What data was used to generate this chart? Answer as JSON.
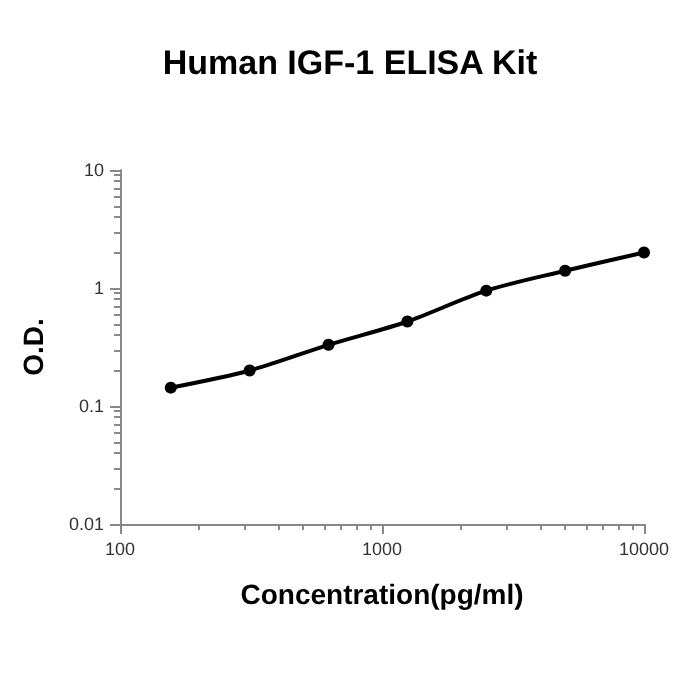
{
  "chart_data": {
    "type": "line",
    "title": "Human IGF-1 ELISA Kit",
    "xlabel": "Concentration(pg/ml)",
    "ylabel": "O.D.",
    "x": [
      156.25,
      312.5,
      625,
      1250,
      2500,
      5000,
      10000
    ],
    "series": [
      {
        "color": "#000000",
        "values": [
          0.143,
          0.2,
          0.33,
          0.52,
          0.95,
          1.4,
          2.0
        ]
      }
    ],
    "log": "xy",
    "xlim": [
      100,
      10000
    ],
    "xticks": [
      100,
      1000,
      10000
    ],
    "ylim": [
      0.01,
      10
    ],
    "yticks": [
      0.01,
      0.1,
      1,
      10
    ],
    "marker": "circle",
    "line_style": "solid",
    "grid": false
  }
}
